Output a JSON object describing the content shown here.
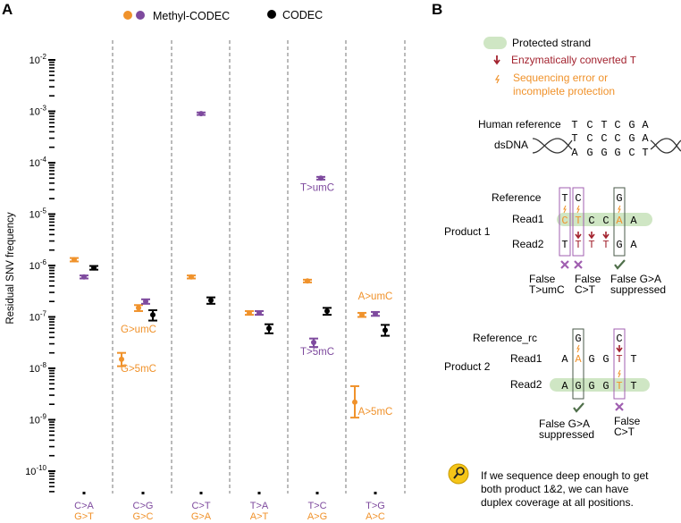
{
  "panel_a": {
    "label": "A",
    "legend": {
      "methyl": "Methyl-CODEC",
      "codec": "CODEC"
    },
    "colors": {
      "orange": "#f0922b",
      "purple": "#7e4a9e",
      "black": "#000000",
      "green": "#cfe6c4",
      "red": "#a3232f",
      "gray": "#4a5a4a"
    }
  },
  "chart_data": {
    "type": "scatter",
    "ylabel": "Residual SNV frequency",
    "yscale": "log",
    "ylim": [
      1.8e-11,
      0.018
    ],
    "yticks": [
      "10-2",
      "10-3",
      "10-4",
      "10-5",
      "10-6",
      "10-7",
      "10-8",
      "10-9",
      "10-10"
    ],
    "categories": [
      {
        "top": "C>A",
        "bottom": "G>T"
      },
      {
        "top": "C>G",
        "bottom": "G>C"
      },
      {
        "top": "C>T",
        "bottom": "G>A"
      },
      {
        "top": "T>A",
        "bottom": "A>T"
      },
      {
        "top": "T>C",
        "bottom": "A>G"
      },
      {
        "top": "T>G",
        "bottom": "A>C"
      }
    ],
    "points": [
      {
        "cat": 0,
        "series": "Methyl-CODEC",
        "color": "orange",
        "value": 1.3e-06,
        "lo": 1.2e-06,
        "hi": 1.4e-06
      },
      {
        "cat": 0,
        "series": "Methyl-CODEC",
        "color": "purple",
        "value": 6e-07,
        "lo": 5.6e-07,
        "hi": 6.4e-07
      },
      {
        "cat": 0,
        "series": "CODEC",
        "color": "black",
        "value": 9e-07,
        "lo": 8.3e-07,
        "hi": 9.8e-07
      },
      {
        "cat": 1,
        "series": "Methyl-CODEC",
        "color": "orange",
        "value": 1.5e-07,
        "lo": 1.3e-07,
        "hi": 1.7e-07
      },
      {
        "cat": 1,
        "series": "Methyl-CODEC",
        "color": "purple",
        "value": 2e-07,
        "lo": 1.8e-07,
        "hi": 2.2e-07
      },
      {
        "cat": 1,
        "series": "CODEC",
        "color": "black",
        "value": 1.1e-07,
        "lo": 8.5e-08,
        "hi": 1.35e-07
      },
      {
        "cat": 1,
        "series": "Methyl-CODEC",
        "color": "orange",
        "value": 1.5e-08,
        "lo": 1.1e-08,
        "hi": 2e-08,
        "label": "G>5mC"
      },
      {
        "cat": 2,
        "series": "Methyl-CODEC",
        "color": "purple",
        "value": 0.0009,
        "lo": 0.00085,
        "hi": 0.00095
      },
      {
        "cat": 2,
        "series": "Methyl-CODEC",
        "color": "orange",
        "value": 6e-07,
        "lo": 5.6e-07,
        "hi": 6.4e-07
      },
      {
        "cat": 2,
        "series": "CODEC",
        "color": "black",
        "value": 2.1e-07,
        "lo": 1.8e-07,
        "hi": 2.4e-07
      },
      {
        "cat": 3,
        "series": "Methyl-CODEC",
        "color": "orange",
        "value": 1.2e-07,
        "lo": 1.1e-07,
        "hi": 1.3e-07
      },
      {
        "cat": 3,
        "series": "Methyl-CODEC",
        "color": "purple",
        "value": 1.2e-07,
        "lo": 1.1e-07,
        "hi": 1.3e-07
      },
      {
        "cat": 3,
        "series": "CODEC",
        "color": "black",
        "value": 6e-08,
        "lo": 4.8e-08,
        "hi": 7.2e-08
      },
      {
        "cat": 4,
        "series": "Methyl-CODEC",
        "color": "purple",
        "value": 5e-05,
        "lo": 4.7e-05,
        "hi": 5.3e-05,
        "label": "T>umC"
      },
      {
        "cat": 4,
        "series": "Methyl-CODEC",
        "color": "orange",
        "value": 5e-07,
        "lo": 4.7e-07,
        "hi": 5.3e-07
      },
      {
        "cat": 4,
        "series": "CODEC",
        "color": "black",
        "value": 1.3e-07,
        "lo": 1.1e-07,
        "hi": 1.5e-07
      },
      {
        "cat": 4,
        "series": "Methyl-CODEC",
        "color": "purple",
        "value": 3.2e-08,
        "lo": 2.6e-08,
        "hi": 3.8e-08,
        "label": "T>5mC"
      },
      {
        "cat": 5,
        "series": "Methyl-CODEC",
        "color": "orange",
        "value": 1.1e-07,
        "lo": 1e-07,
        "hi": 1.2e-07,
        "label": "A>umC"
      },
      {
        "cat": 5,
        "series": "Methyl-CODEC",
        "color": "purple",
        "value": 1.15e-07,
        "lo": 1.05e-07,
        "hi": 1.25e-07
      },
      {
        "cat": 5,
        "series": "CODEC",
        "color": "black",
        "value": 5.5e-08,
        "lo": 4.3e-08,
        "hi": 7e-08
      },
      {
        "cat": 5,
        "series": "Methyl-CODEC",
        "color": "orange",
        "value": 2.2e-09,
        "lo": 1.1e-09,
        "hi": 4.5e-09,
        "label": "A>5mC"
      }
    ],
    "annotations": [
      {
        "text": "G>umC",
        "color": "orange",
        "cat": 1
      }
    ]
  },
  "panel_b": {
    "label": "B",
    "legend": {
      "protected": "Protected strand",
      "converted": "Enzymatically converted",
      "converted_base": "T",
      "seq_error_1": "Sequencing error or",
      "seq_error_2": "incomplete protection"
    },
    "human_reference_label": "Human reference",
    "human_reference": [
      "T",
      "C",
      "T",
      "C",
      "G",
      "A"
    ],
    "dsdna_label": "dsDNA",
    "dsdna_top": [
      "T",
      "C",
      "C",
      "C",
      "G",
      "A"
    ],
    "dsdna_bottom": [
      "A",
      "G",
      "G",
      "G",
      "C",
      "T"
    ],
    "product1": {
      "label": "Product 1",
      "row_labels": [
        "Reference",
        "Read1",
        "Read2"
      ],
      "reference": [
        "T",
        "C",
        "",
        "",
        "G",
        ""
      ],
      "read1": [
        "C",
        "T",
        "C",
        "C",
        "A",
        "A"
      ],
      "read2": [
        "T",
        "T",
        "T",
        "T",
        "G",
        "A"
      ],
      "outcomes": [
        {
          "line1": "False",
          "line2": "T>umC"
        },
        {
          "line1": "False",
          "line2": "C>T"
        },
        {
          "line1": "False G>A",
          "line2": "suppressed"
        }
      ]
    },
    "product2": {
      "label": "Product 2",
      "row_labels": [
        "Reference_rc",
        "Read1",
        "Read2"
      ],
      "reference": [
        "",
        "G",
        "",
        "",
        "C",
        ""
      ],
      "read1": [
        "A",
        "A",
        "G",
        "G",
        "T",
        "T"
      ],
      "read2": [
        "A",
        "G",
        "G",
        "G",
        "T",
        "T"
      ],
      "outcomes": [
        {
          "line1": "False G>A",
          "line2": "suppressed"
        },
        {
          "line1": "False",
          "line2": "C>T"
        }
      ]
    },
    "note": {
      "icon": "magnifier-icon",
      "lines": [
        "If we sequence deep enough to get",
        "both product 1&2, we can have",
        "duplex coverage at all positions."
      ]
    }
  }
}
